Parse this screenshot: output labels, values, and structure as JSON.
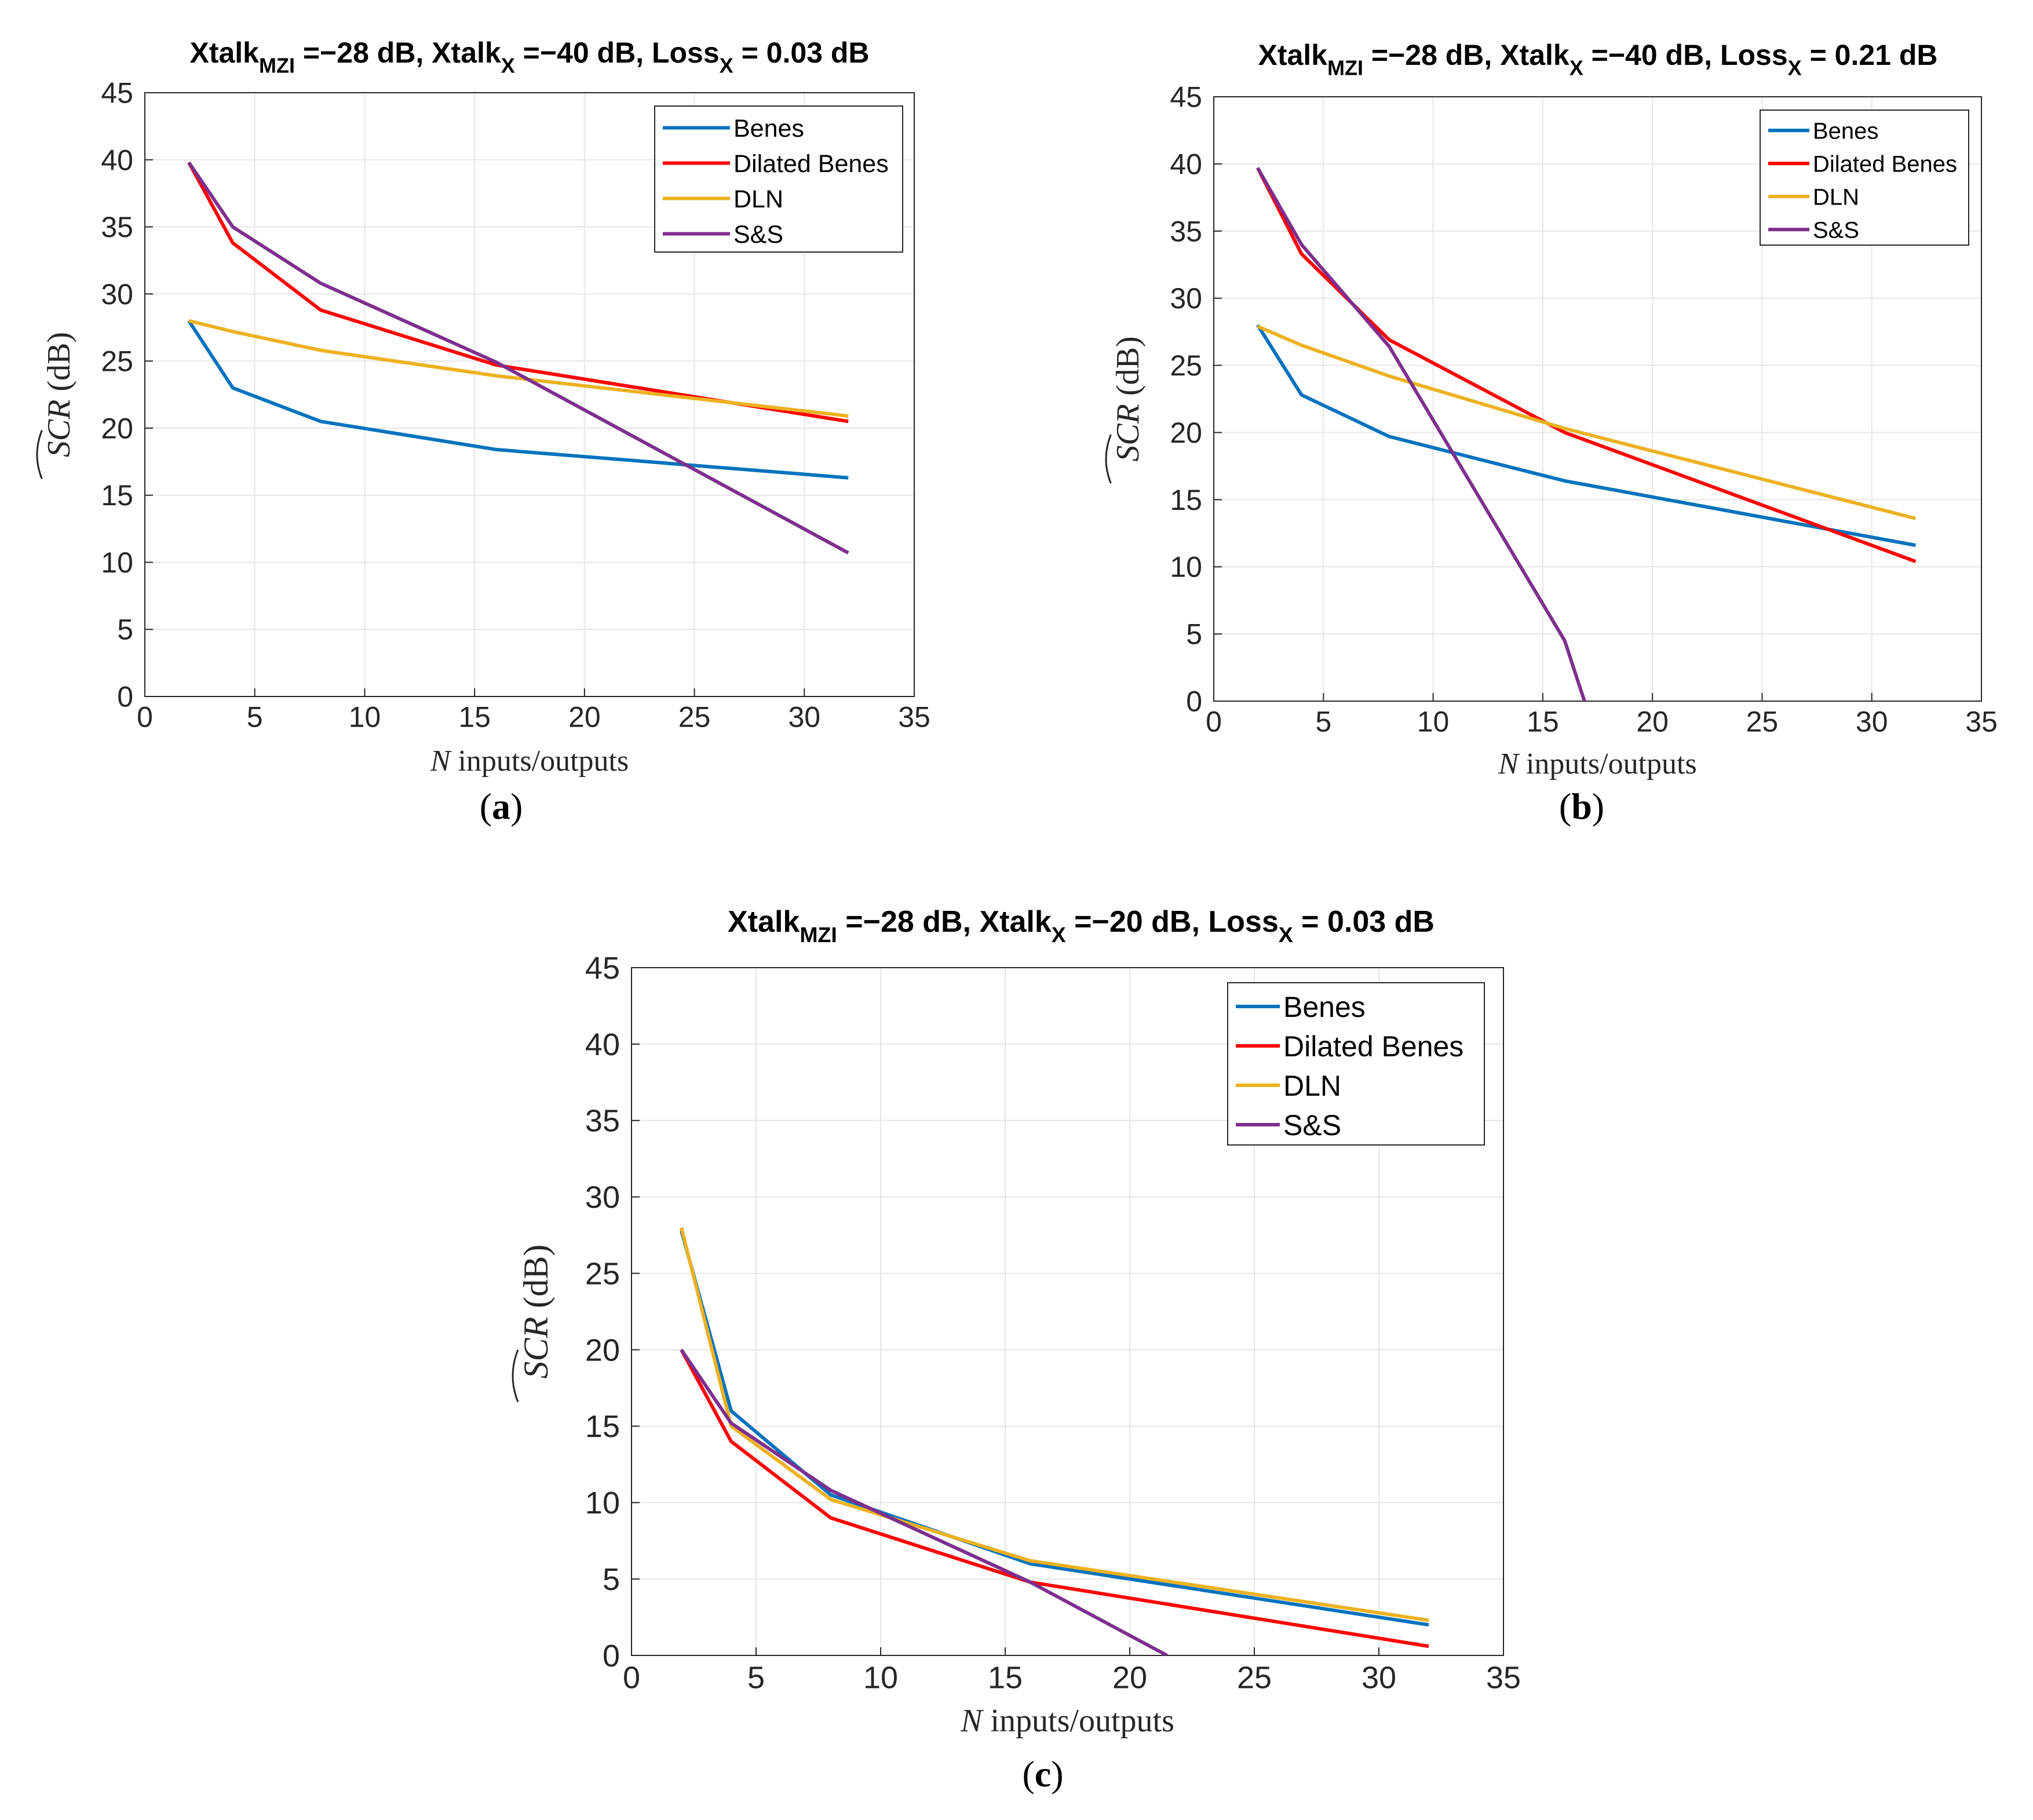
{
  "series_colors": {
    "Benes": "#0072BD",
    "Dilated Benes": "#FF0000",
    "DLN": "#EDB120",
    "S&S": "#7E2F8E"
  },
  "chart_data": [
    {
      "id": "a",
      "type": "line",
      "title_parts": [
        "Xtalk",
        "MZI",
        " =−28 dB, Xtalk",
        "X",
        " =−40 dB, Loss",
        "X",
        " = 0.03 dB"
      ],
      "xlabel_var": "N",
      "xlabel_text": " inputs/outputs",
      "ylabel_text": "SCR",
      "ylabel_suffix": " (dB)",
      "xlim": [
        0,
        35
      ],
      "ylim": [
        0,
        45
      ],
      "xticks": [
        0,
        5,
        10,
        15,
        20,
        25,
        30,
        35
      ],
      "yticks": [
        0,
        5,
        10,
        15,
        20,
        25,
        30,
        35,
        40,
        45
      ],
      "grid": true,
      "legend": "top-right",
      "panel_label": "a",
      "series": [
        {
          "name": "Benes",
          "x": [
            2,
            4,
            8,
            16,
            32
          ],
          "values": [
            28.0,
            23.0,
            20.5,
            18.4,
            16.3
          ]
        },
        {
          "name": "Dilated Benes",
          "x": [
            2,
            4,
            8,
            16,
            32
          ],
          "values": [
            39.8,
            33.8,
            28.8,
            24.7,
            20.5
          ]
        },
        {
          "name": "DLN",
          "x": [
            2,
            4,
            8,
            16,
            32
          ],
          "values": [
            28.0,
            27.2,
            25.8,
            23.9,
            20.9
          ]
        },
        {
          "name": "S&S",
          "x": [
            2,
            4,
            8,
            16,
            32
          ],
          "values": [
            39.8,
            35.0,
            30.8,
            24.9,
            10.7
          ]
        }
      ]
    },
    {
      "id": "b",
      "type": "line",
      "title_parts": [
        "Xtalk",
        "MZI",
        " =−28 dB, Xtalk",
        "X",
        " =−40 dB, Loss",
        "X",
        " = 0.21 dB"
      ],
      "xlabel_var": "N",
      "xlabel_text": " inputs/outputs",
      "ylabel_text": "SCR",
      "ylabel_suffix": " (dB)",
      "xlim": [
        0,
        35
      ],
      "ylim": [
        0,
        45
      ],
      "xticks": [
        0,
        5,
        10,
        15,
        20,
        25,
        30,
        35
      ],
      "yticks": [
        0,
        5,
        10,
        15,
        20,
        25,
        30,
        35,
        40,
        45
      ],
      "grid": true,
      "legend": "top-right",
      "panel_label": "b",
      "series": [
        {
          "name": "Benes",
          "x": [
            2,
            4,
            8,
            16,
            32
          ],
          "values": [
            28.0,
            22.8,
            19.7,
            16.4,
            11.6
          ]
        },
        {
          "name": "Dilated Benes",
          "x": [
            2,
            4,
            8,
            16,
            32
          ],
          "values": [
            39.7,
            33.3,
            26.9,
            20.0,
            10.4
          ]
        },
        {
          "name": "DLN",
          "x": [
            2,
            4,
            8,
            16,
            32
          ],
          "values": [
            27.9,
            26.5,
            24.2,
            20.3,
            13.6
          ]
        },
        {
          "name": "S&S",
          "x": [
            2,
            4,
            8,
            16,
            16.9
          ],
          "values": [
            39.7,
            34.0,
            26.4,
            4.5,
            0
          ]
        }
      ]
    },
    {
      "id": "c",
      "type": "line",
      "title_parts": [
        "Xtalk",
        "MZI",
        " =−28 dB, Xtalk",
        "X",
        " =−20 dB, Loss",
        "X",
        " = 0.03 dB"
      ],
      "xlabel_var": "N",
      "xlabel_text": " inputs/outputs",
      "ylabel_text": "SCR",
      "ylabel_suffix": " (dB)",
      "xlim": [
        0,
        35
      ],
      "ylim": [
        0,
        45
      ],
      "xticks": [
        0,
        5,
        10,
        15,
        20,
        25,
        30,
        35
      ],
      "yticks": [
        0,
        5,
        10,
        15,
        20,
        25,
        30,
        35,
        40,
        45
      ],
      "grid": true,
      "legend": "top-right",
      "panel_label": "c",
      "series": [
        {
          "name": "Benes",
          "x": [
            2,
            4,
            8,
            16,
            32
          ],
          "values": [
            27.8,
            16.0,
            10.5,
            6.0,
            2.0
          ]
        },
        {
          "name": "Dilated Benes",
          "x": [
            2,
            4,
            8,
            16,
            32
          ],
          "values": [
            20.0,
            14.0,
            9.0,
            4.8,
            0.6
          ]
        },
        {
          "name": "DLN",
          "x": [
            2,
            4,
            8,
            16,
            32
          ],
          "values": [
            28.0,
            15.0,
            10.2,
            6.2,
            2.3
          ]
        },
        {
          "name": "S&S",
          "x": [
            2,
            4,
            8,
            16,
            21.5
          ],
          "values": [
            20.0,
            15.2,
            10.8,
            4.8,
            0
          ]
        }
      ]
    }
  ]
}
